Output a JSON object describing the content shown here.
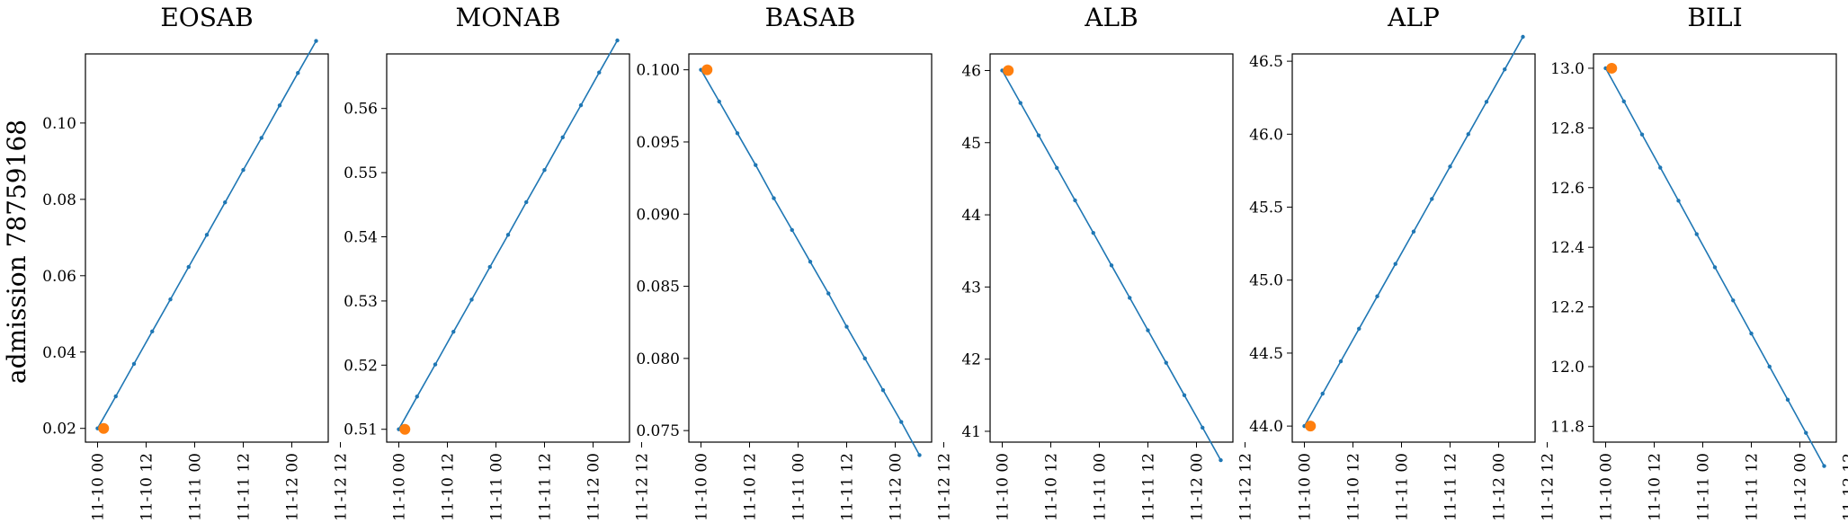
{
  "row_label": "admission 78759168",
  "colors": {
    "line": "#1f77b4",
    "marker": "#ff7f0e",
    "axes": "#000000",
    "background": "#ffffff"
  },
  "chart_data": [
    {
      "type": "line",
      "title": "EOSAB",
      "x_ticks": [
        "11-10 00",
        "11-10 12",
        "11-11 00",
        "11-11 12",
        "11-12 00",
        "11-12 12"
      ],
      "x": [
        0,
        4.5,
        9,
        13.5,
        18,
        22.5,
        27,
        31.5,
        36,
        40.5,
        45,
        49.5,
        54
      ],
      "y": [
        0.02,
        0.0284,
        0.0369,
        0.0454,
        0.0538,
        0.0623,
        0.0707,
        0.0792,
        0.0877,
        0.0961,
        0.1046,
        0.1131,
        0.1215
      ],
      "highlight": {
        "x": 1.5,
        "y": 0.02
      },
      "xlim": [
        -3,
        57
      ],
      "ylim": [
        0.0164,
        0.1181
      ],
      "y_ticks": [
        "0.02",
        "0.04",
        "0.06",
        "0.08",
        "0.10"
      ],
      "y_tick_values": [
        0.02,
        0.04,
        0.06,
        0.08,
        0.1
      ]
    },
    {
      "type": "line",
      "title": "MONAB",
      "x_ticks": [
        "11-10 00",
        "11-10 12",
        "11-11 00",
        "11-11 12",
        "11-12 00",
        "11-12 12"
      ],
      "x": [
        0,
        4.5,
        9,
        13.5,
        18,
        22.5,
        27,
        31.5,
        36,
        40.5,
        45,
        49.5,
        54
      ],
      "y": [
        0.51,
        0.5151,
        0.5201,
        0.5252,
        0.5302,
        0.5353,
        0.5403,
        0.5454,
        0.5504,
        0.5555,
        0.5605,
        0.5656,
        0.5706
      ],
      "highlight": {
        "x": 1.5,
        "y": 0.51
      },
      "xlim": [
        -3,
        57
      ],
      "ylim": [
        0.508,
        0.5685
      ],
      "y_ticks": [
        "0.51",
        "0.52",
        "0.53",
        "0.54",
        "0.55",
        "0.56"
      ],
      "y_tick_values": [
        0.51,
        0.52,
        0.53,
        0.54,
        0.55,
        0.56
      ]
    },
    {
      "type": "line",
      "title": "BASAB",
      "x_ticks": [
        "11-10 00",
        "11-10 12",
        "11-11 00",
        "11-11 12",
        "11-12 00",
        "11-12 12"
      ],
      "x": [
        0,
        4.5,
        9,
        13.5,
        18,
        22.5,
        27,
        31.5,
        36,
        40.5,
        45,
        49.5,
        54
      ],
      "y": [
        0.1,
        0.0978,
        0.0956,
        0.0934,
        0.0911,
        0.0889,
        0.0867,
        0.0845,
        0.0822,
        0.08,
        0.0778,
        0.0756,
        0.0733
      ],
      "highlight": {
        "x": 1.5,
        "y": 0.1
      },
      "xlim": [
        -3,
        57
      ],
      "ylim": [
        0.0742,
        0.1011
      ],
      "y_ticks": [
        "0.075",
        "0.080",
        "0.085",
        "0.090",
        "0.095",
        "0.100"
      ],
      "y_tick_values": [
        0.075,
        0.08,
        0.085,
        0.09,
        0.095,
        0.1
      ]
    },
    {
      "type": "line",
      "title": "ALB",
      "x_ticks": [
        "11-10 00",
        "11-10 12",
        "11-11 00",
        "11-11 12",
        "11-12 00",
        "11-12 12"
      ],
      "x": [
        0,
        4.5,
        9,
        13.5,
        18,
        22.5,
        27,
        31.5,
        36,
        40.5,
        45,
        49.5,
        54
      ],
      "y": [
        46.0,
        45.55,
        45.1,
        44.65,
        44.2,
        43.75,
        43.3,
        42.85,
        42.4,
        41.95,
        41.5,
        41.05,
        40.6
      ],
      "highlight": {
        "x": 1.5,
        "y": 46.0
      },
      "xlim": [
        -3,
        57
      ],
      "ylim": [
        40.85,
        46.23
      ],
      "y_ticks": [
        "41",
        "42",
        "43",
        "44",
        "45",
        "46"
      ],
      "y_tick_values": [
        41,
        42,
        43,
        44,
        45,
        46
      ]
    },
    {
      "type": "line",
      "title": "ALP",
      "x_ticks": [
        "11-10 00",
        "11-10 12",
        "11-11 00",
        "11-11 12",
        "11-12 00",
        "11-12 12"
      ],
      "x": [
        0,
        4.5,
        9,
        13.5,
        18,
        22.5,
        27,
        31.5,
        36,
        40.5,
        45,
        49.5,
        54
      ],
      "y": [
        44.0,
        44.222,
        44.444,
        44.667,
        44.889,
        45.111,
        45.333,
        45.556,
        45.778,
        46.0,
        46.222,
        46.444,
        46.667
      ],
      "highlight": {
        "x": 1.5,
        "y": 44.0
      },
      "xlim": [
        -3,
        57
      ],
      "ylim": [
        43.89,
        46.55
      ],
      "y_ticks": [
        "44.0",
        "44.5",
        "45.0",
        "45.5",
        "46.0",
        "46.5"
      ],
      "y_tick_values": [
        44.0,
        44.5,
        45.0,
        45.5,
        46.0,
        46.5
      ]
    },
    {
      "type": "line",
      "title": "BILI",
      "x_ticks": [
        "11-10 00",
        "11-10 12",
        "11-11 00",
        "11-11 12",
        "11-12 00",
        "11-12 12"
      ],
      "x": [
        0,
        4.5,
        9,
        13.5,
        18,
        22.5,
        27,
        31.5,
        36,
        40.5,
        45,
        49.5,
        54
      ],
      "y": [
        13.0,
        12.889,
        12.778,
        12.667,
        12.556,
        12.444,
        12.333,
        12.222,
        12.111,
        12.0,
        11.889,
        11.778,
        11.667
      ],
      "highlight": {
        "x": 1.5,
        "y": 13.0
      },
      "xlim": [
        -3,
        57
      ],
      "ylim": [
        11.747,
        13.048
      ],
      "y_ticks": [
        "11.8",
        "12.0",
        "12.2",
        "12.4",
        "12.6",
        "12.8",
        "13.0"
      ],
      "y_tick_values": [
        11.8,
        12.0,
        12.2,
        12.4,
        12.6,
        12.8,
        13.0
      ]
    }
  ]
}
